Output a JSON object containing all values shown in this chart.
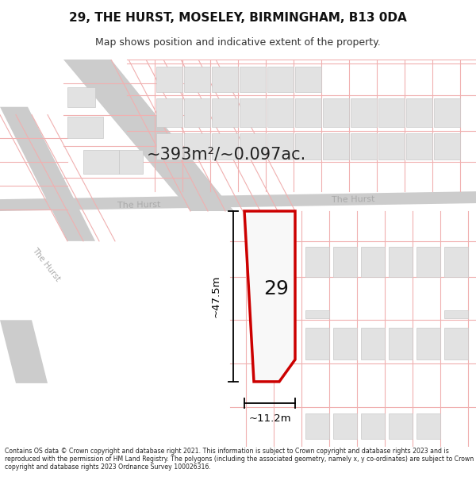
{
  "title": "29, THE HURST, MOSELEY, BIRMINGHAM, B13 0DA",
  "subtitle": "Map shows position and indicative extent of the property.",
  "area_text": "~393m²/~0.097ac.",
  "dim_width": "~11.2m",
  "dim_height": "~47.5m",
  "label_number": "29",
  "road_label_1": "The Hurst",
  "road_label_2": "The Hurst",
  "road_label_3": "The Hurst",
  "footer": "Contains OS data © Crown copyright and database right 2021. This information is subject to Crown copyright and database rights 2023 and is reproduced with the permission of HM Land Registry. The polygons (including the associated geometry, namely x, y co-ordinates) are subject to Crown copyright and database rights 2023 Ordnance Survey 100026316.",
  "bg_color": "#ffffff",
  "map_bg_color": "#f0f0f0",
  "plot_fill_color": "#ffffff",
  "plot_outline_color": "#cc0000",
  "road_color": "#cccccc",
  "building_fill": "#e2e2e2",
  "building_stroke": "#c8c8c8",
  "light_red": "#f0b0b0",
  "road_label_color": "#aaaaaa",
  "dimension_color": "#000000"
}
